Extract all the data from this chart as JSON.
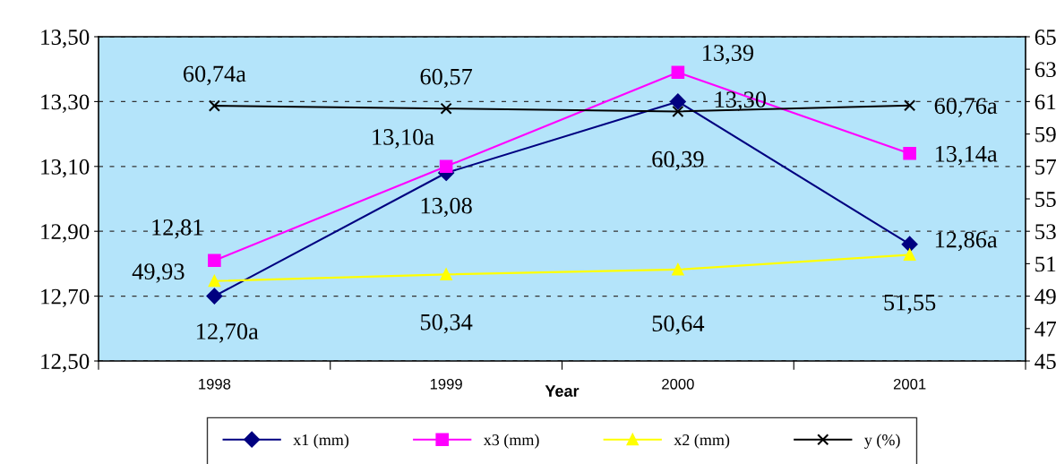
{
  "chart_data": {
    "type": "line",
    "xlabel": "Year",
    "categories": [
      "1998",
      "1999",
      "2000",
      "2001"
    ],
    "series": [
      {
        "name": "x1 (mm)",
        "color": "#000080",
        "marker": "diamond",
        "values": [
          12.7,
          13.08,
          13.3,
          12.86
        ],
        "value_labels": [
          "12,70a",
          "13,08",
          "13,30",
          "12,86a"
        ]
      },
      {
        "name": "x3 (mm)",
        "color": "#ff00ff",
        "marker": "square",
        "values": [
          12.81,
          13.1,
          13.39,
          13.14
        ],
        "value_labels": [
          "12,81",
          "13,10a",
          "13,39",
          "13,14a"
        ]
      },
      {
        "name": "x2 (mm)",
        "color": "#ffff00",
        "marker": "triangle",
        "axis": "y2",
        "values": [
          49.93,
          50.34,
          50.64,
          51.55
        ],
        "value_labels": [
          "49,93",
          "50,34",
          "50,64",
          "51,55"
        ]
      },
      {
        "name": "y (%)",
        "color": "#000000",
        "marker": "cross",
        "axis": "y2",
        "values": [
          60.74,
          60.57,
          60.39,
          60.76
        ],
        "value_labels": [
          "60,74a",
          "60,57",
          "60,39",
          "60,76a"
        ]
      }
    ],
    "ylim": [
      12.5,
      13.5
    ],
    "yticks": [
      {
        "value": 12.5,
        "label": "12,50"
      },
      {
        "value": 12.7,
        "label": "12,70"
      },
      {
        "value": 12.9,
        "label": "12,90"
      },
      {
        "value": 13.1,
        "label": "13,10"
      },
      {
        "value": 13.3,
        "label": "13,30"
      },
      {
        "value": 13.5,
        "label": "13,50"
      }
    ],
    "y2lim": [
      45,
      65
    ],
    "y2ticks": [
      45,
      47,
      49,
      51,
      53,
      55,
      57,
      59,
      61,
      63,
      65
    ],
    "grid": "y",
    "legend": "bottom",
    "line_style": "solid"
  }
}
